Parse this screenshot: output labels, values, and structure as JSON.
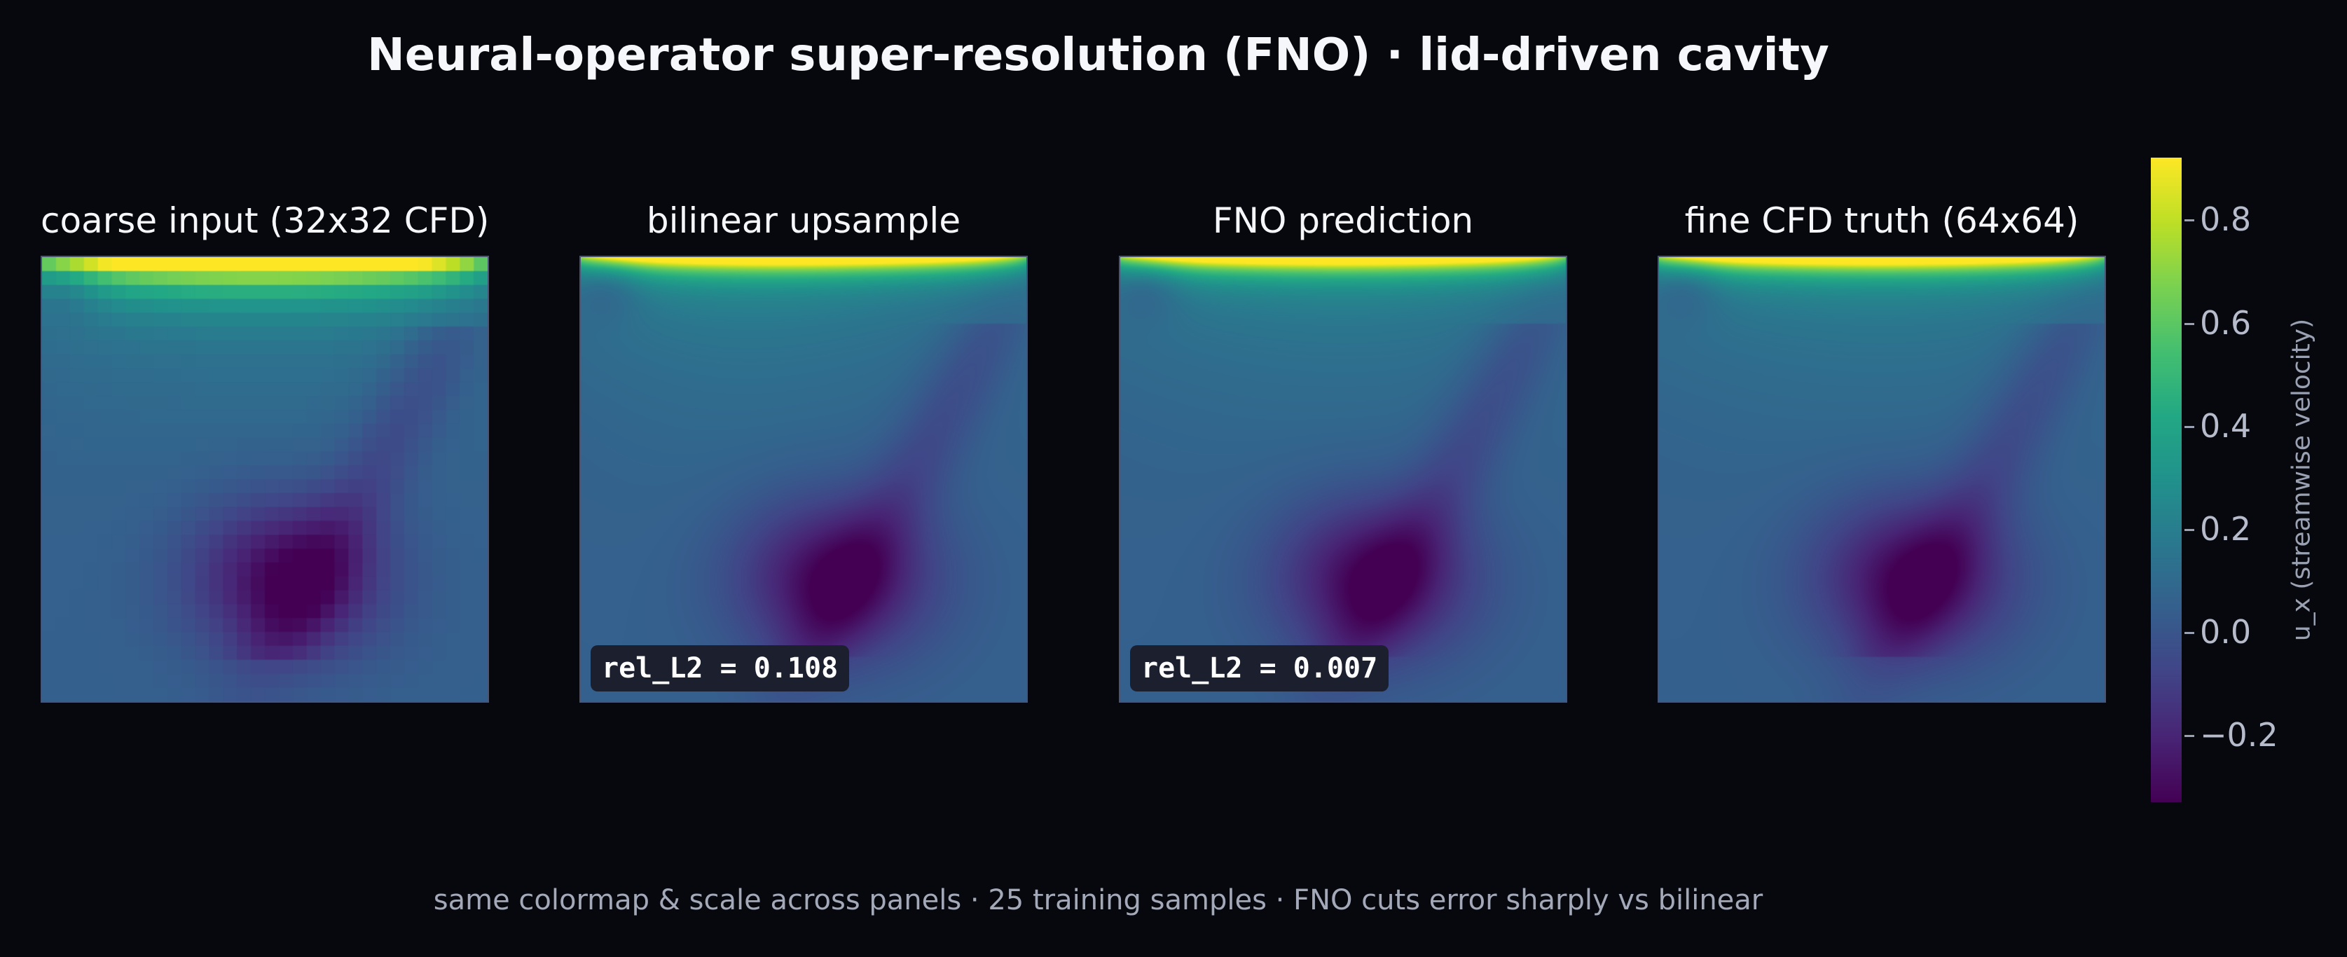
{
  "title": "Neural-operator super-resolution (FNO) · lid-driven cavity",
  "caption": "same colormap & scale across panels · 25 training samples · FNO cuts error sharply vs bilinear",
  "chart_data": {
    "type": "heatmap",
    "colormap": "viridis",
    "value_range": [
      -0.33,
      0.92
    ],
    "colorbar": {
      "label": "u_x  (streamwise velocity)",
      "ticks": [
        {
          "value": 0.8,
          "label": "0.8"
        },
        {
          "value": 0.6,
          "label": "0.6"
        },
        {
          "value": 0.4,
          "label": "0.4"
        },
        {
          "value": 0.2,
          "label": "0.2"
        },
        {
          "value": 0.0,
          "label": "0.0"
        },
        {
          "value": -0.2,
          "label": "−0.2"
        }
      ]
    },
    "panels": [
      {
        "title": "coarse input  (32x32 CFD)",
        "resolution": 32,
        "smoothing": "nearest",
        "metric": ""
      },
      {
        "title": "bilinear upsample",
        "resolution": 32,
        "smoothing": "bilinear",
        "metric": "rel_L2 = 0.108"
      },
      {
        "title": "FNO prediction",
        "resolution": 64,
        "smoothing": "smooth",
        "metric": "rel_L2 = 0.007"
      },
      {
        "title": "fine CFD truth  (64x64)",
        "resolution": 64,
        "smoothing": "smooth",
        "metric": ""
      }
    ]
  }
}
